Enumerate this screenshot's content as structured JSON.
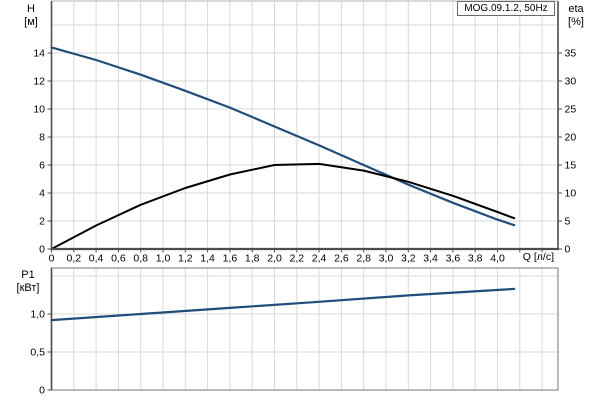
{
  "title_box": {
    "label": "MOG.09.1.2, 50Hz"
  },
  "colors": {
    "curve_blue": "#1f4e7c",
    "curve_black": "#000000",
    "grid": "#d9d9d9",
    "frame_light": "#b4b4b4",
    "frame_mid": "#8c8c8c",
    "axis_dark": "#4d4d4d"
  },
  "chart_data": [
    {
      "type": "line",
      "name": "hq-eta-chart",
      "x_axis": {
        "label": "Q [л/с]",
        "min": 0,
        "max": 4.54,
        "tick_values": [
          0,
          0.2,
          0.4,
          0.6,
          0.8,
          1.0,
          1.2,
          1.4,
          1.6,
          1.8,
          2.0,
          2.2,
          2.4,
          2.6,
          2.8,
          3.0,
          3.2,
          3.4,
          3.6,
          3.8,
          4.0
        ],
        "tick_labels": [
          "0",
          "0,2",
          "0,4",
          "0,6",
          "0,8",
          "1,0",
          "1,2",
          "1,4",
          "1,6",
          "1,8",
          "2,0",
          "2,2",
          "2,4",
          "2,6",
          "2,8",
          "3,0",
          "3,2",
          "3,4",
          "3,6",
          "3,8",
          "4,0"
        ],
        "grid_step": 0.2,
        "grid_max": 4.4
      },
      "left_axis": {
        "label": "H\n[м]",
        "min": 0,
        "max": 17.7,
        "tick_values": [
          0,
          2,
          4,
          6,
          8,
          10,
          12,
          14
        ],
        "tick_labels": [
          "0",
          "2",
          "4",
          "6",
          "8",
          "10",
          "12",
          "14"
        ],
        "grid_step": 2,
        "grid_max": 16
      },
      "right_axis": {
        "label": "eta\n[%]",
        "min": 0,
        "max": 44.3,
        "tick_values": [
          0,
          5,
          10,
          15,
          20,
          25,
          30,
          35
        ],
        "tick_labels": [
          "0",
          "5",
          "10",
          "15",
          "20",
          "25",
          "30",
          "35"
        ]
      },
      "series": [
        {
          "name": "head-curve",
          "axis": "left",
          "color": "#1f4e7c",
          "stroke_width": 2.2,
          "x": [
            0,
            0.4,
            0.8,
            1.2,
            1.6,
            2.0,
            2.4,
            2.8,
            3.2,
            3.6,
            4.0,
            4.15
          ],
          "y": [
            14.4,
            13.5,
            12.45,
            11.3,
            10.1,
            8.75,
            7.4,
            6.0,
            4.6,
            3.3,
            2.1,
            1.7
          ]
        },
        {
          "name": "efficiency-curve",
          "axis": "right",
          "color": "#000000",
          "stroke_width": 2,
          "x": [
            0,
            0.4,
            0.8,
            1.2,
            1.6,
            2.0,
            2.4,
            2.8,
            3.2,
            3.6,
            4.0,
            4.15
          ],
          "y": [
            0,
            4.2,
            7.9,
            10.9,
            13.3,
            15.0,
            15.2,
            14.0,
            12.0,
            9.5,
            6.6,
            5.5
          ]
        }
      ]
    },
    {
      "type": "line",
      "name": "power-chart",
      "left_axis": {
        "label": "P1\n[кВт]",
        "min": 0,
        "max": 1.6,
        "tick_values": [
          0,
          0.5,
          1.0
        ],
        "tick_labels": [
          "0",
          "0,5",
          "1,0"
        ],
        "grid_step": 0.5,
        "grid_max": 1.5
      },
      "series": [
        {
          "name": "power-curve",
          "axis": "left",
          "color": "#1f4e7c",
          "stroke_width": 2.2,
          "x": [
            0,
            0.8,
            1.6,
            2.4,
            3.2,
            4.15
          ],
          "y": [
            0.92,
            1.0,
            1.08,
            1.16,
            1.245,
            1.33
          ]
        }
      ]
    }
  ]
}
